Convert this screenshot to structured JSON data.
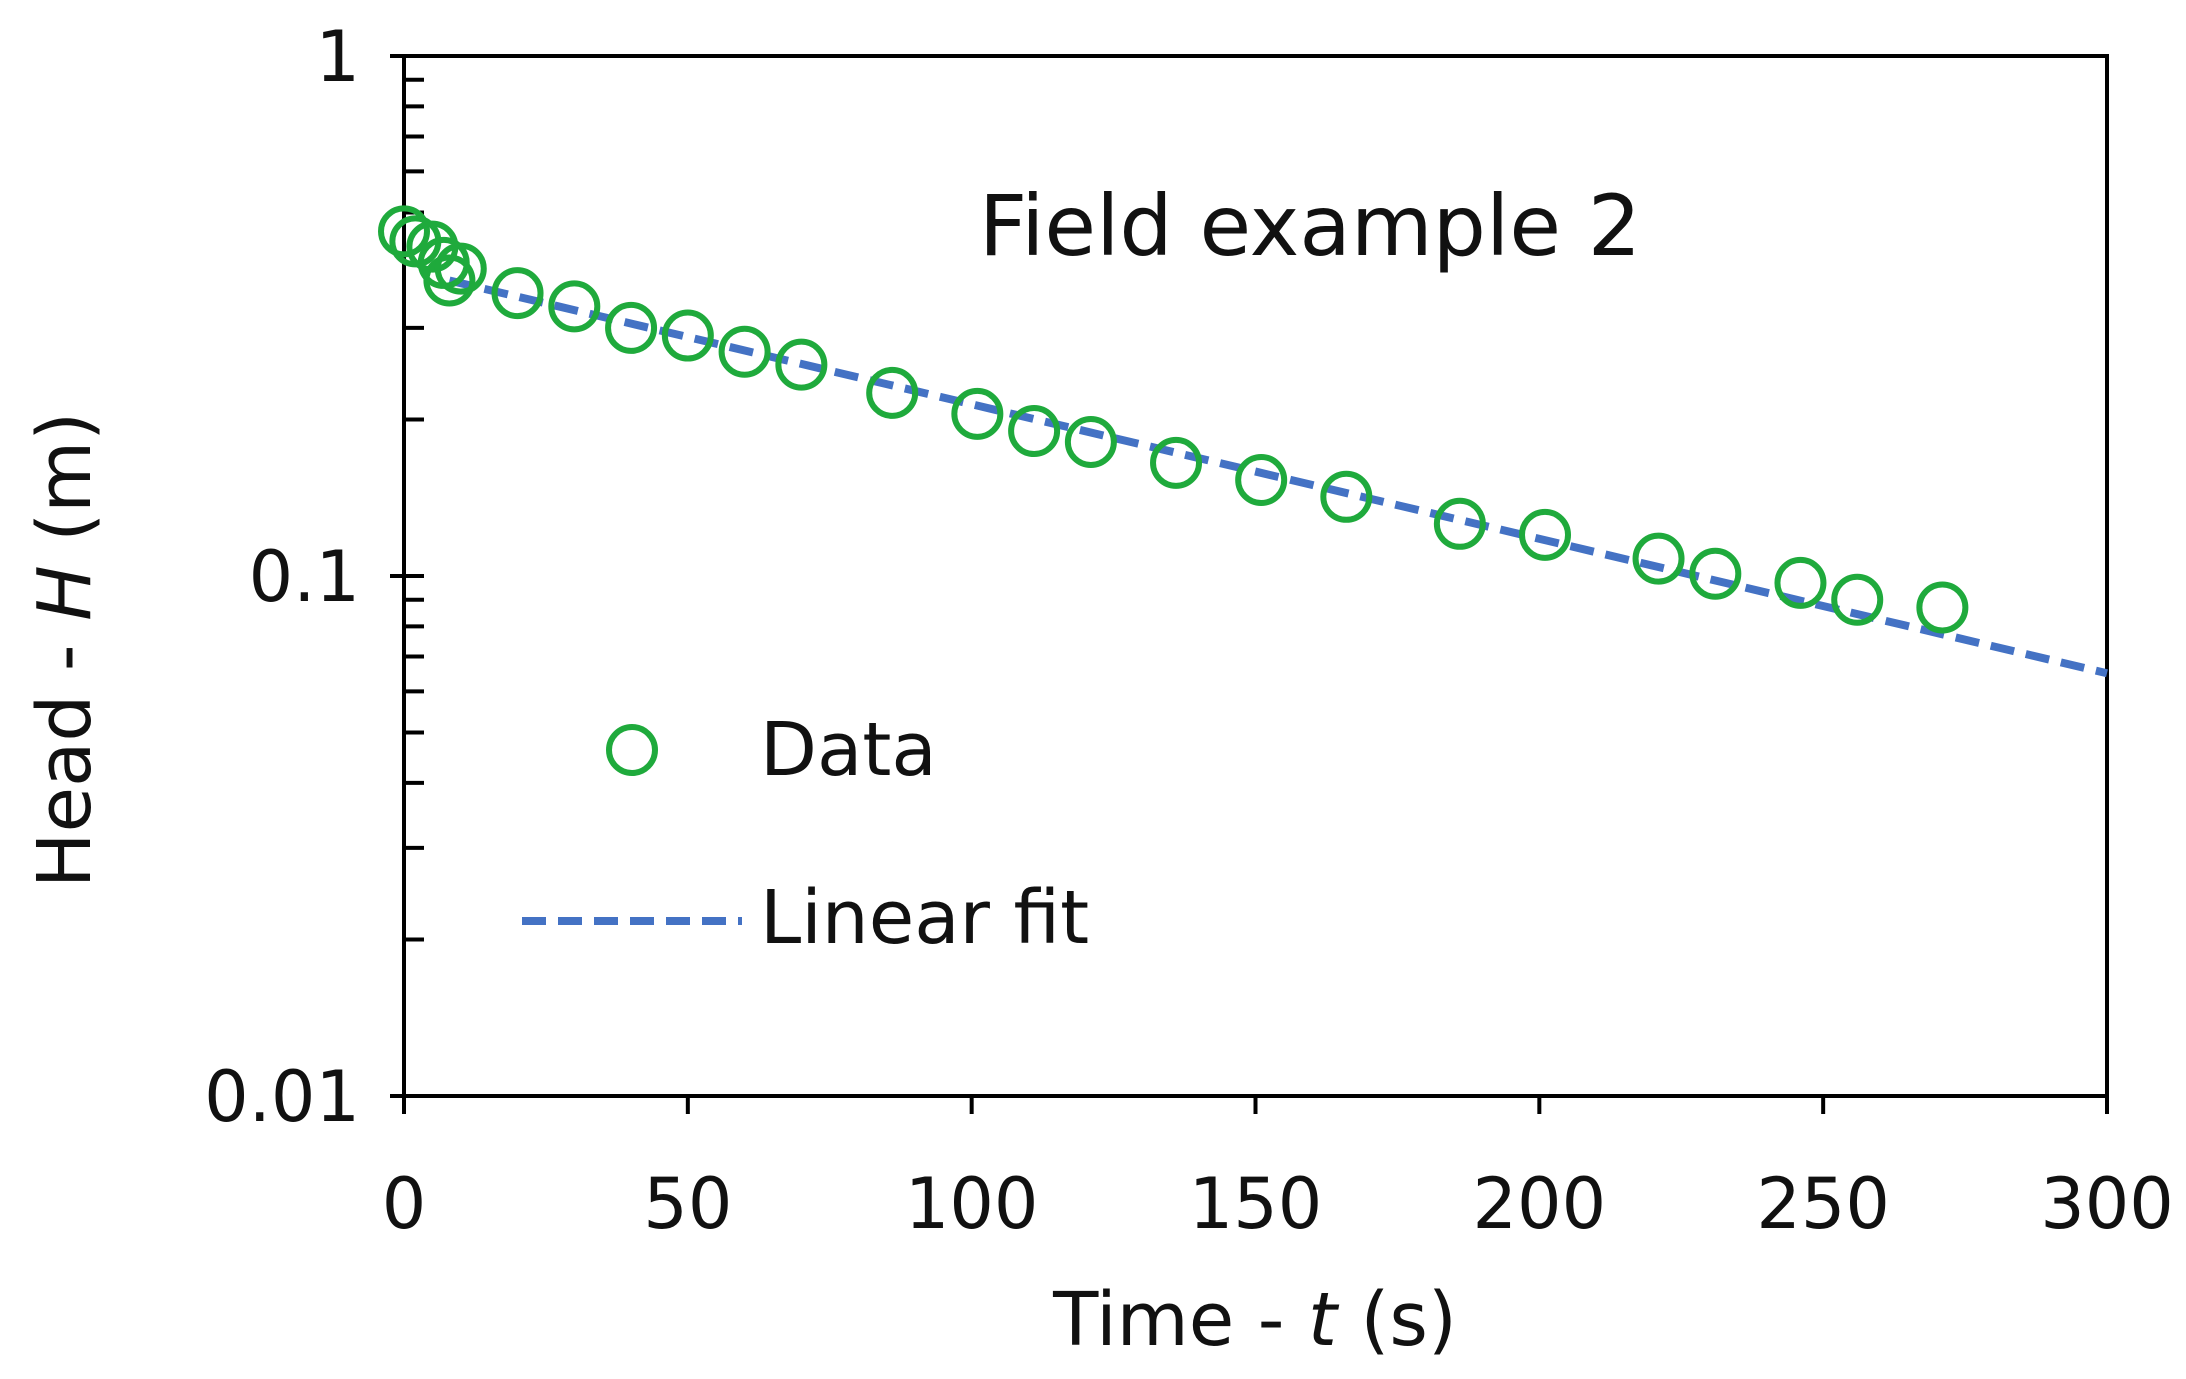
{
  "chart_data": {
    "type": "scatter",
    "title": "Field example 2",
    "xlabel_parts": [
      "Time - ",
      "t",
      " (s)"
    ],
    "ylabel_parts": [
      "Head - ",
      "H",
      " (m)"
    ],
    "x_axis": {
      "scale": "linear",
      "range": [
        0,
        300
      ],
      "ticks": [
        0,
        50,
        100,
        150,
        200,
        250,
        300
      ],
      "tick_labels": [
        "0",
        "50",
        "100",
        "150",
        "200",
        "250",
        "300"
      ]
    },
    "y_axis": {
      "scale": "log",
      "range": [
        0.01,
        1
      ],
      "major_ticks": [
        0.01,
        0.1,
        1
      ],
      "tick_labels": [
        "0.01",
        "0.1",
        "1"
      ]
    },
    "grid": false,
    "legend": {
      "placement": "lower-left",
      "entries": [
        {
          "label": "Data",
          "marker": "open-circle"
        },
        {
          "label": "Linear fit",
          "marker": "dashed-line"
        }
      ]
    },
    "series": [
      {
        "name": "Data",
        "style": "scatter",
        "color": "#1faa3c",
        "points": [
          {
            "x": 0,
            "y": 0.46
          },
          {
            "x": 2,
            "y": 0.44
          },
          {
            "x": 5,
            "y": 0.43
          },
          {
            "x": 7,
            "y": 0.4
          },
          {
            "x": 8,
            "y": 0.37
          },
          {
            "x": 10,
            "y": 0.39
          },
          {
            "x": 20,
            "y": 0.35
          },
          {
            "x": 30,
            "y": 0.33
          },
          {
            "x": 40,
            "y": 0.3
          },
          {
            "x": 50,
            "y": 0.29
          },
          {
            "x": 60,
            "y": 0.27
          },
          {
            "x": 70,
            "y": 0.255
          },
          {
            "x": 86,
            "y": 0.225
          },
          {
            "x": 101,
            "y": 0.205
          },
          {
            "x": 111,
            "y": 0.19
          },
          {
            "x": 121,
            "y": 0.181
          },
          {
            "x": 136,
            "y": 0.165
          },
          {
            "x": 151,
            "y": 0.153
          },
          {
            "x": 166,
            "y": 0.142
          },
          {
            "x": 186,
            "y": 0.126
          },
          {
            "x": 201,
            "y": 0.12
          },
          {
            "x": 221,
            "y": 0.108
          },
          {
            "x": 231,
            "y": 0.101
          },
          {
            "x": 246,
            "y": 0.097
          },
          {
            "x": 256,
            "y": 0.09
          },
          {
            "x": 271,
            "y": 0.087
          }
        ]
      },
      {
        "name": "Linear fit",
        "style": "dashed-line",
        "color": "#4472c4",
        "x": [
          8,
          300
        ],
        "y": [
          0.37,
          0.065
        ]
      }
    ]
  }
}
